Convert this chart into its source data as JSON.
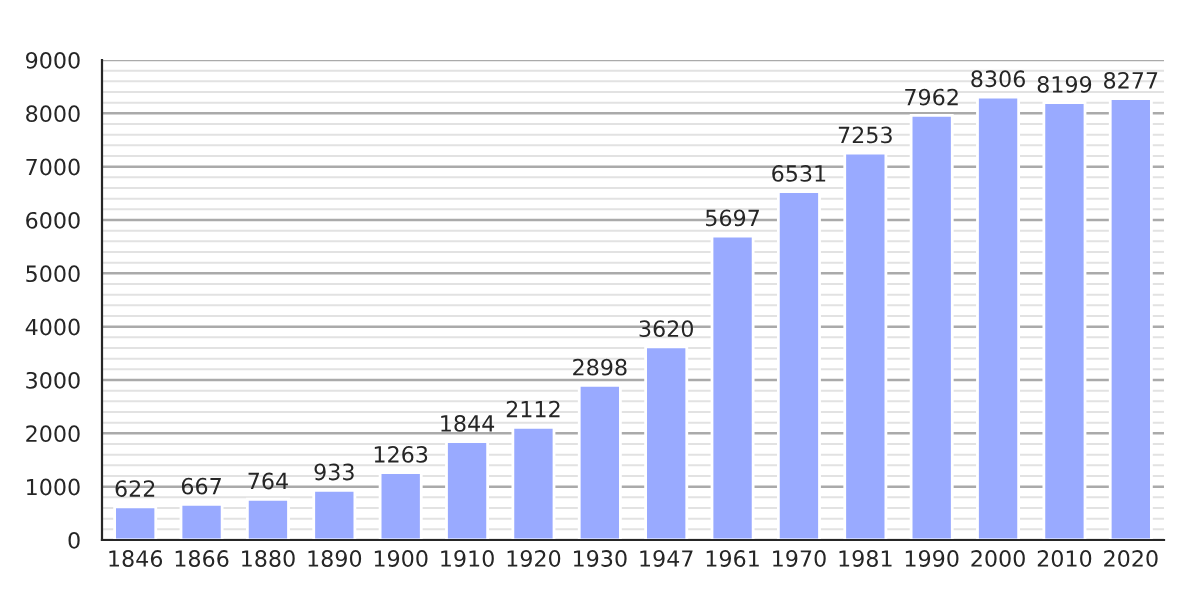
{
  "chart_data": {
    "type": "bar",
    "categories": [
      "1846",
      "1866",
      "1880",
      "1890",
      "1900",
      "1910",
      "1920",
      "1930",
      "1947",
      "1961",
      "1970",
      "1981",
      "1990",
      "2000",
      "2010",
      "2020"
    ],
    "values": [
      622,
      667,
      764,
      933,
      1263,
      1844,
      2112,
      2898,
      3620,
      5697,
      6531,
      7253,
      7962,
      8306,
      8199,
      8277
    ],
    "color": "#99aaff",
    "ylim": [
      0,
      9000
    ],
    "yticks": [
      0,
      1000,
      2000,
      3000,
      4000,
      5000,
      6000,
      7000,
      8000,
      9000
    ],
    "grid": "y",
    "data_labels": true
  }
}
